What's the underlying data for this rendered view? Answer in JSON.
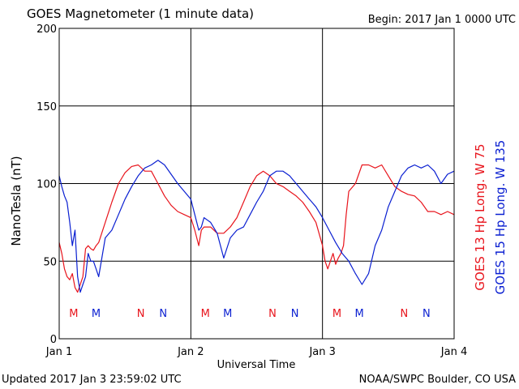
{
  "chart_data": {
    "type": "line",
    "title": "GOES Magnetometer (1 minute data)",
    "begin_label": "Begin:  2017 Jan 1 0000 UTC",
    "ylabel": "NanoTesla (nT)",
    "xlabel": "Universal Time",
    "ylim": [
      0,
      200
    ],
    "yticks": [
      0,
      50,
      100,
      150,
      200
    ],
    "xlim": [
      0,
      3
    ],
    "x_unit": "days since 2017 Jan 1 0000 UTC",
    "xticks": [
      {
        "x": 0,
        "label": "Jan 1"
      },
      {
        "x": 1,
        "label": "Jan 2"
      },
      {
        "x": 2,
        "label": "Jan 3"
      },
      {
        "x": 3,
        "label": "Jan 4"
      }
    ],
    "grid": true,
    "series": [
      {
        "name": "GOES 13 Hp  Long. W 75",
        "color": "#e8141c",
        "x": [
          0,
          0.02,
          0.04,
          0.06,
          0.08,
          0.1,
          0.12,
          0.14,
          0.16,
          0.18,
          0.2,
          0.22,
          0.24,
          0.26,
          0.28,
          0.3,
          0.35,
          0.4,
          0.45,
          0.5,
          0.55,
          0.6,
          0.65,
          0.7,
          0.75,
          0.8,
          0.85,
          0.9,
          0.95,
          1.0,
          1.03,
          1.06,
          1.08,
          1.1,
          1.15,
          1.2,
          1.25,
          1.3,
          1.35,
          1.4,
          1.45,
          1.5,
          1.55,
          1.6,
          1.65,
          1.7,
          1.75,
          1.8,
          1.85,
          1.9,
          1.95,
          2.0,
          2.02,
          2.04,
          2.06,
          2.08,
          2.1,
          2.12,
          2.14,
          2.16,
          2.18,
          2.2,
          2.25,
          2.3,
          2.35,
          2.4,
          2.45,
          2.5,
          2.55,
          2.6,
          2.65,
          2.7,
          2.75,
          2.8,
          2.85,
          2.9,
          2.95,
          3.0
        ],
        "y": [
          62,
          55,
          45,
          40,
          38,
          42,
          33,
          30,
          35,
          40,
          58,
          60,
          58,
          57,
          60,
          62,
          75,
          88,
          100,
          107,
          111,
          112,
          108,
          108,
          100,
          92,
          86,
          82,
          80,
          78,
          70,
          60,
          70,
          72,
          72,
          68,
          68,
          72,
          78,
          88,
          98,
          105,
          108,
          105,
          100,
          98,
          95,
          92,
          88,
          82,
          75,
          60,
          50,
          45,
          50,
          55,
          48,
          52,
          55,
          60,
          80,
          95,
          100,
          112,
          112,
          110,
          112,
          105,
          98,
          95,
          93,
          92,
          88,
          82,
          82,
          80,
          82,
          80
        ]
      },
      {
        "name": "GOES 15 Hp  Long. W 135",
        "color": "#0a1fd1",
        "x": [
          0,
          0.02,
          0.04,
          0.06,
          0.08,
          0.1,
          0.12,
          0.14,
          0.16,
          0.18,
          0.2,
          0.22,
          0.24,
          0.26,
          0.28,
          0.3,
          0.35,
          0.4,
          0.45,
          0.5,
          0.55,
          0.6,
          0.65,
          0.7,
          0.75,
          0.8,
          0.85,
          0.9,
          0.95,
          1.0,
          1.03,
          1.06,
          1.08,
          1.1,
          1.15,
          1.2,
          1.25,
          1.3,
          1.35,
          1.4,
          1.45,
          1.5,
          1.55,
          1.6,
          1.65,
          1.7,
          1.75,
          1.8,
          1.85,
          1.9,
          1.95,
          2.0,
          2.05,
          2.1,
          2.15,
          2.2,
          2.25,
          2.3,
          2.35,
          2.4,
          2.45,
          2.5,
          2.55,
          2.6,
          2.65,
          2.7,
          2.75,
          2.8,
          2.85,
          2.9,
          2.95,
          3.0
        ],
        "y": [
          105,
          98,
          92,
          88,
          75,
          60,
          70,
          40,
          30,
          35,
          40,
          55,
          50,
          50,
          45,
          40,
          65,
          70,
          80,
          90,
          98,
          105,
          110,
          112,
          115,
          112,
          106,
          100,
          95,
          90,
          80,
          70,
          72,
          78,
          75,
          68,
          52,
          65,
          70,
          72,
          80,
          88,
          95,
          105,
          108,
          108,
          105,
          100,
          95,
          90,
          85,
          78,
          70,
          62,
          55,
          50,
          42,
          35,
          42,
          60,
          70,
          85,
          95,
          105,
          110,
          112,
          110,
          112,
          108,
          100,
          106,
          108
        ]
      }
    ],
    "annotations": [
      {
        "day": 0,
        "marks": [
          {
            "label": "M",
            "color": "red"
          },
          {
            "label": "M",
            "color": "blue"
          },
          {
            "label": "N",
            "color": "red"
          },
          {
            "label": "N",
            "color": "blue"
          }
        ]
      },
      {
        "day": 1,
        "marks": [
          {
            "label": "M",
            "color": "red"
          },
          {
            "label": "M",
            "color": "blue"
          },
          {
            "label": "N",
            "color": "red"
          },
          {
            "label": "N",
            "color": "blue"
          }
        ]
      },
      {
        "day": 2,
        "marks": [
          {
            "label": "M",
            "color": "red"
          },
          {
            "label": "M",
            "color": "blue"
          },
          {
            "label": "N",
            "color": "red"
          },
          {
            "label": "N",
            "color": "blue"
          }
        ]
      }
    ]
  },
  "footer": {
    "updated": "Updated 2017 Jan  3 23:59:02 UTC",
    "source": "NOAA/SWPC Boulder, CO USA"
  },
  "colors": {
    "red": "#e8141c",
    "blue": "#0a1fd1"
  }
}
